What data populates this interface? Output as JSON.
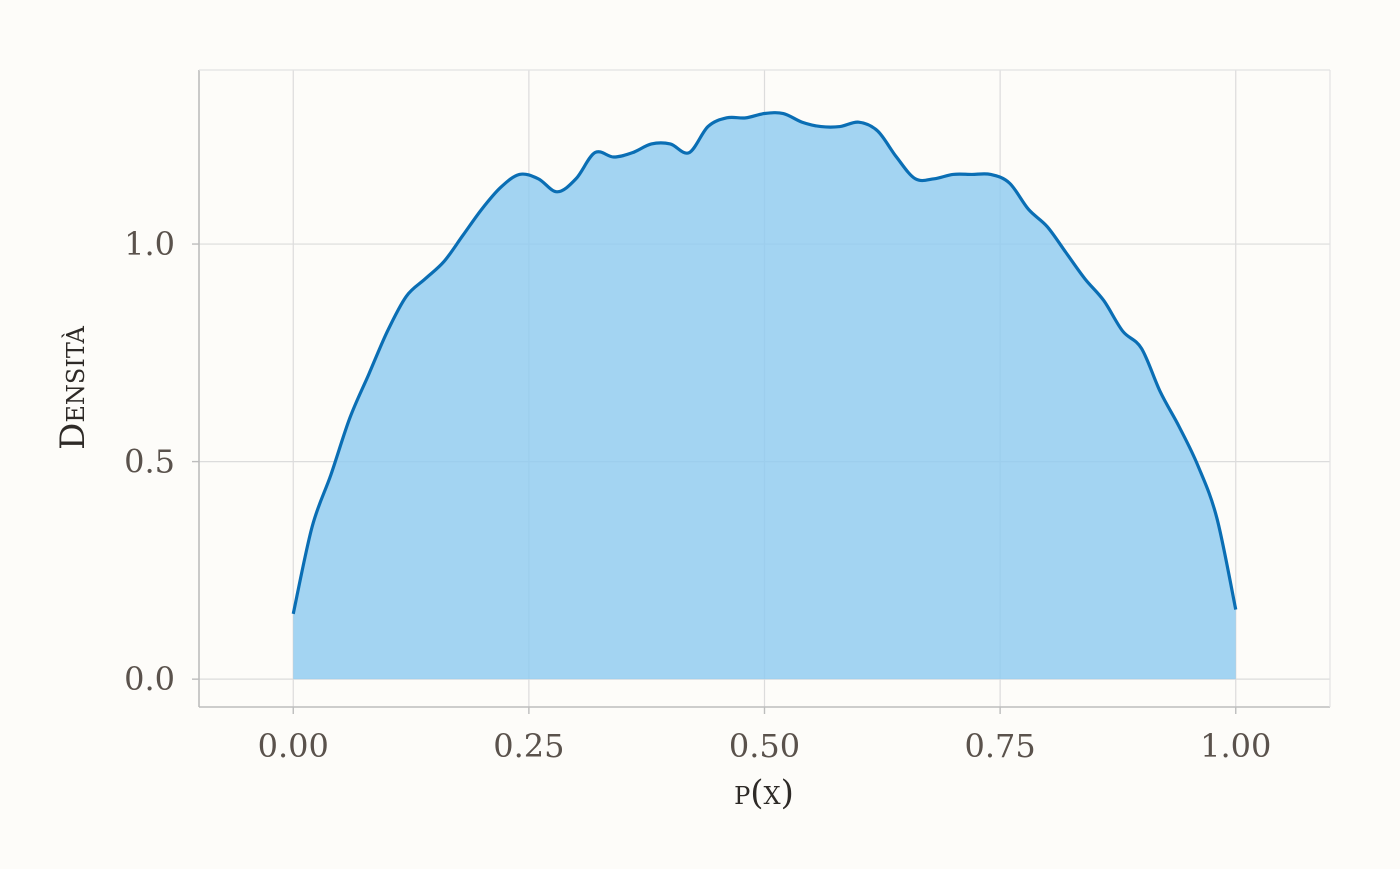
{
  "chart_data": {
    "type": "area",
    "title": "",
    "xlabel": "p(x)",
    "ylabel": "Densità",
    "xlim": [
      -0.1,
      1.1
    ],
    "ylim": [
      -0.064,
      1.4
    ],
    "x_ticks": [
      {
        "value": 0.0,
        "label": "0.00"
      },
      {
        "value": 0.25,
        "label": "0.25"
      },
      {
        "value": 0.5,
        "label": "0.50"
      },
      {
        "value": 0.75,
        "label": "0.75"
      },
      {
        "value": 1.0,
        "label": "1.00"
      }
    ],
    "y_ticks": [
      {
        "value": 0.0,
        "label": "0.0"
      },
      {
        "value": 0.5,
        "label": "0.5"
      },
      {
        "value": 1.0,
        "label": "1.0"
      }
    ],
    "grid": true,
    "legend": "none",
    "colors": {
      "line": "#0a6eb4",
      "fill": "#8fcbf0",
      "grid": "#dcdcdc",
      "frame": "#bdbdbd",
      "background": "#fdfcf9"
    },
    "series": [
      {
        "x": [
          0.0,
          0.02,
          0.04,
          0.06,
          0.08,
          0.1,
          0.12,
          0.14,
          0.16,
          0.18,
          0.2,
          0.22,
          0.24,
          0.26,
          0.28,
          0.3,
          0.32,
          0.34,
          0.36,
          0.38,
          0.4,
          0.42,
          0.44,
          0.46,
          0.48,
          0.5,
          0.52,
          0.54,
          0.56,
          0.58,
          0.6,
          0.62,
          0.64,
          0.66,
          0.68,
          0.7,
          0.72,
          0.74,
          0.76,
          0.78,
          0.8,
          0.82,
          0.84,
          0.86,
          0.88,
          0.9,
          0.92,
          0.94,
          0.96,
          0.98,
          1.0
        ],
        "y": [
          0.15,
          0.35,
          0.47,
          0.6,
          0.7,
          0.8,
          0.88,
          0.92,
          0.96,
          1.02,
          1.08,
          1.13,
          1.16,
          1.15,
          1.12,
          1.15,
          1.21,
          1.2,
          1.21,
          1.23,
          1.23,
          1.21,
          1.27,
          1.29,
          1.29,
          1.3,
          1.3,
          1.28,
          1.27,
          1.27,
          1.28,
          1.26,
          1.2,
          1.15,
          1.15,
          1.16,
          1.16,
          1.16,
          1.14,
          1.08,
          1.04,
          0.98,
          0.92,
          0.87,
          0.8,
          0.76,
          0.66,
          0.58,
          0.49,
          0.37,
          0.16
        ]
      }
    ]
  }
}
